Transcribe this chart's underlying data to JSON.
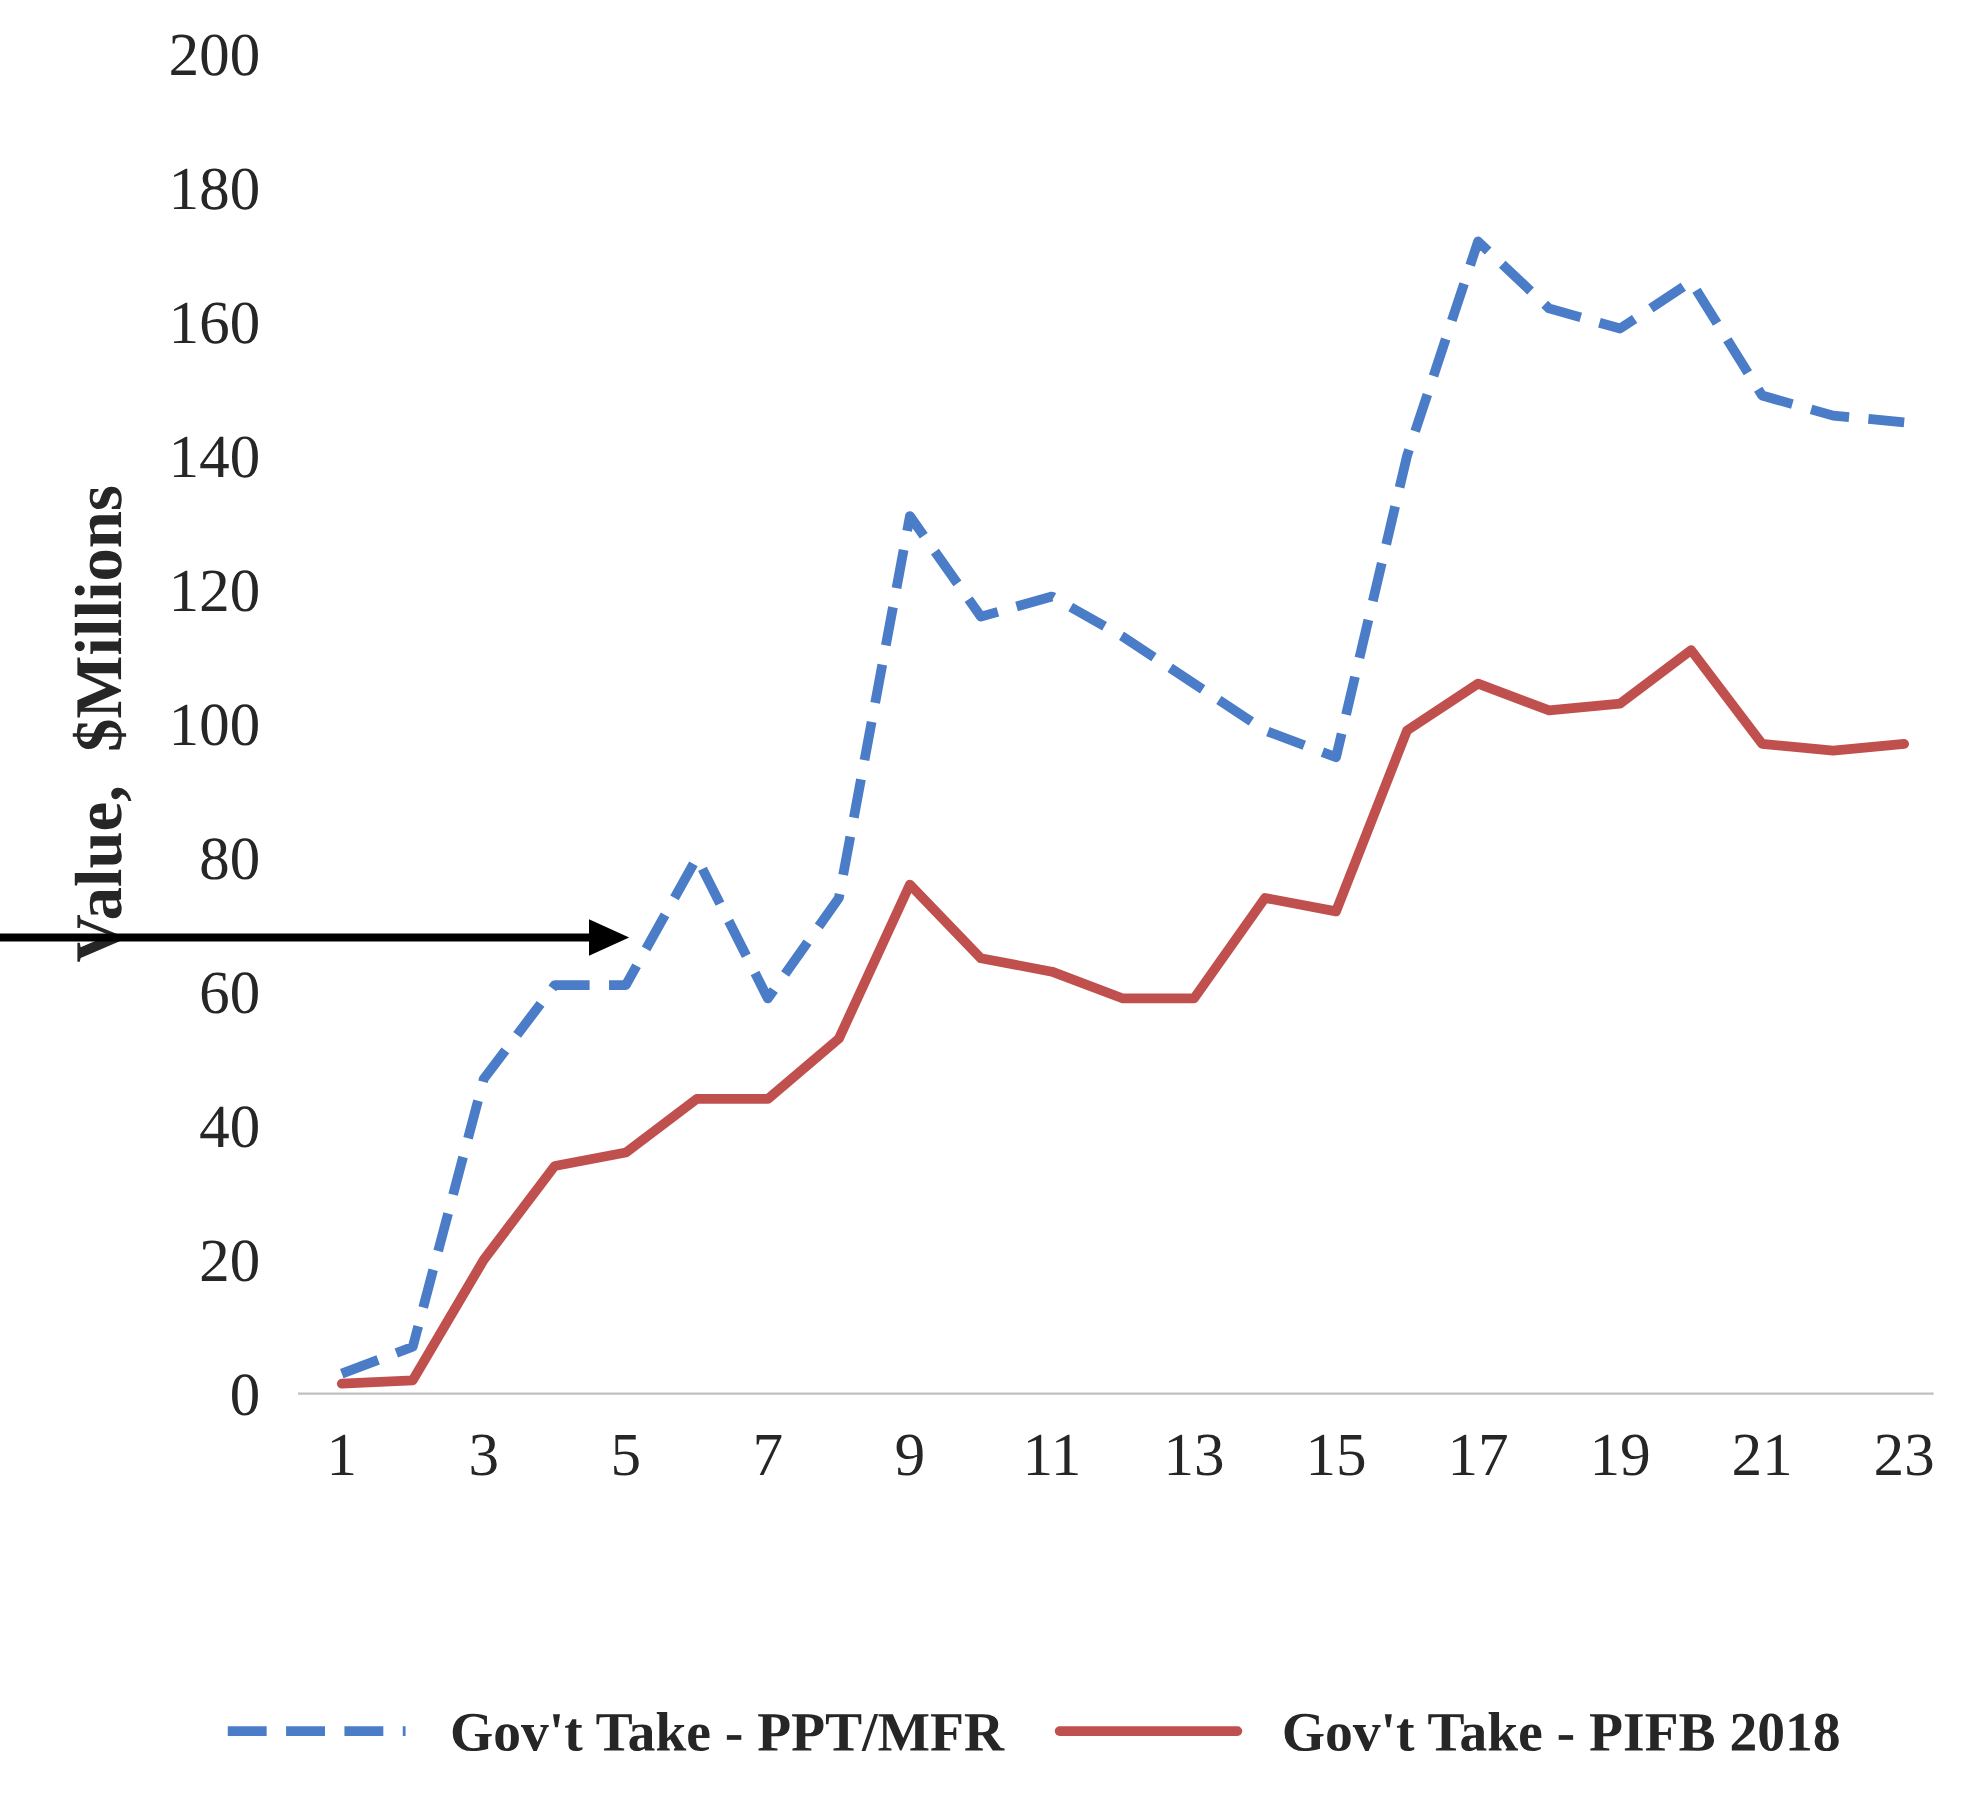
{
  "chart_data": {
    "type": "line",
    "ylabel": "Value,  $Millions",
    "x": [
      1,
      2,
      3,
      4,
      5,
      6,
      7,
      8,
      9,
      10,
      11,
      12,
      13,
      14,
      15,
      16,
      17,
      18,
      19,
      20,
      21,
      22,
      23
    ],
    "series": [
      {
        "name": "Gov't Take - PPT/MFR",
        "color": "#4a7cc7",
        "line_style": "dashed",
        "values": [
          3,
          7,
          47,
          61,
          61,
          80,
          59,
          74,
          131,
          116,
          119,
          113,
          106,
          99,
          95,
          140,
          172,
          162,
          159,
          166,
          149,
          146,
          145
        ]
      },
      {
        "name": "Gov't Take - PIFB 2018",
        "color": "#c0504d",
        "line_style": "solid",
        "values": [
          1.5,
          2,
          20,
          34,
          36,
          44,
          44,
          53,
          76,
          65,
          63,
          59,
          59,
          74,
          72,
          99,
          106,
          102,
          103,
          111,
          97,
          96,
          97
        ]
      }
    ],
    "xlim": [
      0.4,
      23.4
    ],
    "xticks": [
      1,
      3,
      5,
      7,
      9,
      11,
      13,
      15,
      17,
      19,
      21,
      23
    ],
    "ylim": [
      0,
      200
    ],
    "yticks": [
      0,
      20,
      40,
      60,
      80,
      100,
      120,
      140,
      160,
      180,
      200
    ],
    "grid": false,
    "legend": "bottom",
    "marker": "none"
  }
}
